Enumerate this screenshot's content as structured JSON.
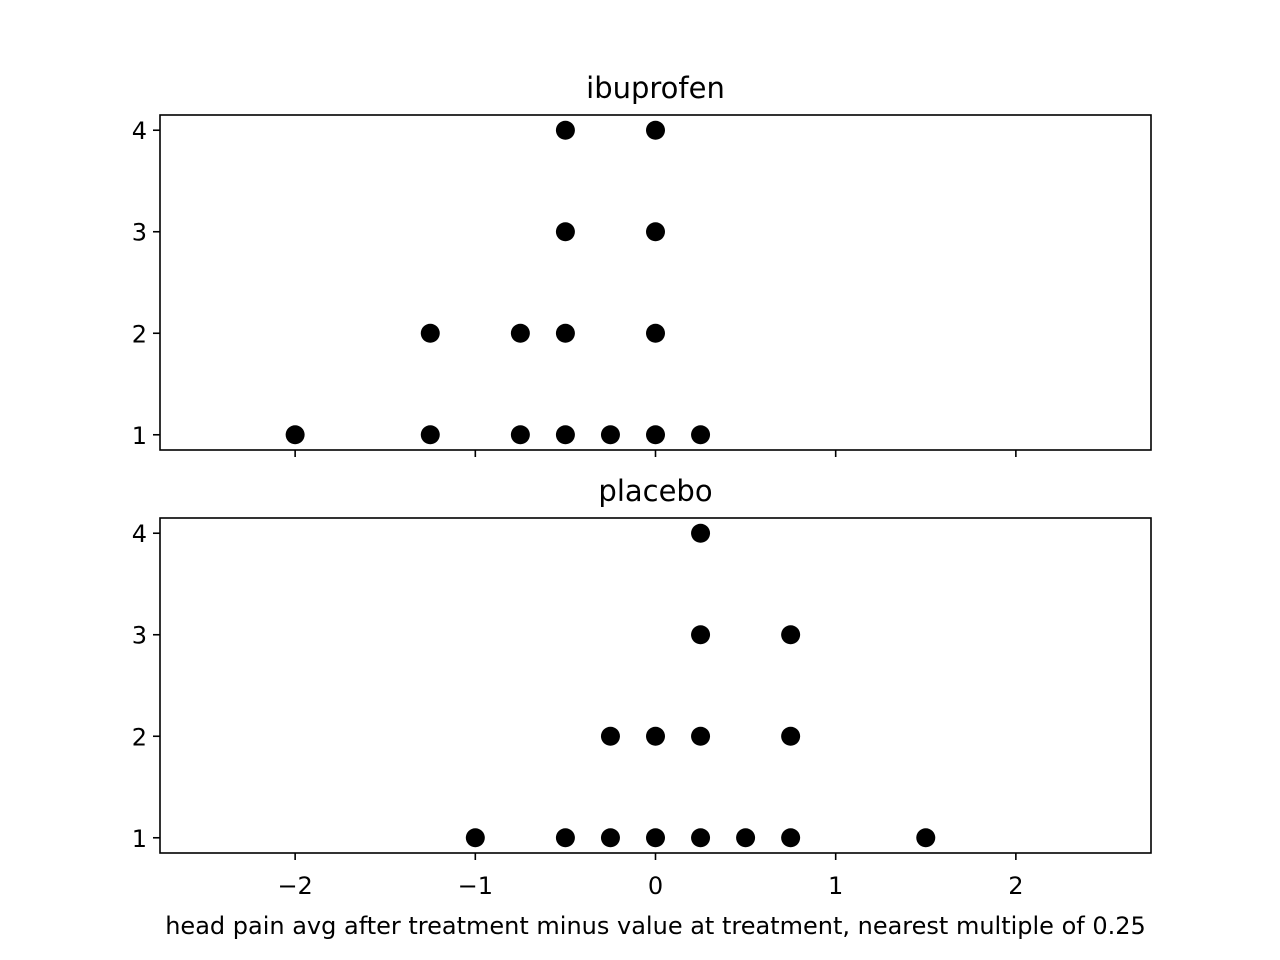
{
  "chart_data": {
    "type": "scatter",
    "xlabel": "head pain avg after treatment minus value at treatment, nearest multiple of 0.25",
    "xlim": [
      -2.75,
      2.75
    ],
    "xticks": [
      -2,
      -1,
      0,
      1,
      2
    ],
    "xtick_labels": [
      "−2",
      "−1",
      "0",
      "1",
      "2"
    ],
    "shared_x": true,
    "colors": {
      "points": "#000000",
      "axes": "#000000",
      "background": "#ffffff"
    },
    "panels": [
      {
        "title": "ibuprofen",
        "ylim": [
          0.85,
          4.15
        ],
        "yticks": [
          1,
          2,
          3,
          4
        ],
        "ytick_labels": [
          "1",
          "2",
          "3",
          "4"
        ],
        "points": [
          [
            -2,
            1
          ],
          [
            -1.25,
            1
          ],
          [
            -1.25,
            2
          ],
          [
            -0.75,
            1
          ],
          [
            -0.75,
            2
          ],
          [
            -0.5,
            1
          ],
          [
            -0.5,
            2
          ],
          [
            -0.5,
            3
          ],
          [
            -0.5,
            4
          ],
          [
            -0.25,
            1
          ],
          [
            0,
            1
          ],
          [
            0,
            2
          ],
          [
            0,
            3
          ],
          [
            0,
            4
          ],
          [
            0.25,
            1
          ]
        ]
      },
      {
        "title": "placebo",
        "ylim": [
          0.85,
          4.15
        ],
        "yticks": [
          1,
          2,
          3,
          4
        ],
        "ytick_labels": [
          "1",
          "2",
          "3",
          "4"
        ],
        "points": [
          [
            -1,
            1
          ],
          [
            -0.5,
            1
          ],
          [
            -0.25,
            1
          ],
          [
            -0.25,
            2
          ],
          [
            0,
            1
          ],
          [
            0,
            2
          ],
          [
            0.25,
            1
          ],
          [
            0.25,
            2
          ],
          [
            0.25,
            3
          ],
          [
            0.25,
            4
          ],
          [
            0.5,
            1
          ],
          [
            0.75,
            1
          ],
          [
            0.75,
            2
          ],
          [
            0.75,
            3
          ],
          [
            1.5,
            1
          ]
        ]
      }
    ]
  }
}
